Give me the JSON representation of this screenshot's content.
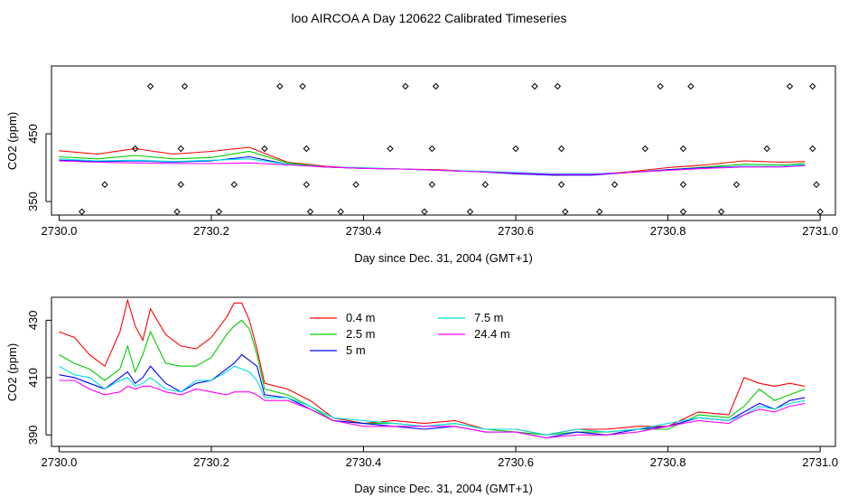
{
  "title": "loo AIRCOA A  Day 120622  Calibrated Timeseries",
  "colors": {
    "0.4 m": "#ff0000",
    "2.5 m": "#00cc00",
    "5 m": "#0000ff",
    "7.5 m": "#00e0e0",
    "24.4 m": "#ff00ff",
    "markers": "#000000"
  },
  "chart_data": [
    {
      "type": "line",
      "xlabel": "Day since Dec. 31, 2004 (GMT+1)",
      "ylabel": "CO2 (ppm)",
      "xlim": [
        2729.99,
        2731.02
      ],
      "ylim": [
        330,
        550
      ],
      "xticks": [
        "2730.0",
        "2730.2",
        "2730.4",
        "2730.6",
        "2730.8",
        "2731.0"
      ],
      "yticks": [
        "350",
        "450"
      ],
      "x": [
        2730.0,
        2730.05,
        2730.1,
        2730.15,
        2730.2,
        2730.25,
        2730.3,
        2730.35,
        2730.4,
        2730.45,
        2730.5,
        2730.55,
        2730.6,
        2730.65,
        2730.7,
        2730.75,
        2730.8,
        2730.85,
        2730.9,
        2730.95,
        2730.98
      ],
      "series": [
        {
          "name": "0.4 m",
          "values": [
            425,
            420,
            428,
            420,
            424,
            430,
            408,
            402,
            399,
            398,
            397,
            394,
            392,
            389,
            390,
            394,
            400,
            404,
            410,
            408,
            409
          ]
        },
        {
          "name": "2.5 m",
          "values": [
            416,
            413,
            418,
            413,
            415,
            424,
            407,
            401,
            399,
            398,
            396,
            394,
            391,
            389,
            390,
            393,
            397,
            401,
            405,
            404,
            406
          ]
        },
        {
          "name": "5 m",
          "values": [
            411,
            409,
            410,
            408,
            410,
            416,
            405,
            401,
            399,
            398,
            396,
            394,
            391,
            389,
            389,
            393,
            397,
            400,
            402,
            402,
            404
          ]
        },
        {
          "name": "7.5 m",
          "values": [
            413,
            410,
            411,
            409,
            411,
            413,
            405,
            401,
            400,
            398,
            396,
            395,
            393,
            391,
            391,
            393,
            396,
            399,
            402,
            402,
            404
          ]
        },
        {
          "name": "24.4 m",
          "values": [
            410,
            408,
            407,
            406,
            406,
            407,
            404,
            401,
            399,
            398,
            396,
            394,
            392,
            390,
            390,
            393,
            396,
            399,
            401,
            401,
            403
          ]
        }
      ],
      "markers": {
        "symbol": "diamond",
        "points": [
          [
            2730.03,
            335
          ],
          [
            2730.06,
            375
          ],
          [
            2730.1,
            428
          ],
          [
            2730.12,
            520
          ],
          [
            2730.155,
            335
          ],
          [
            2730.16,
            375
          ],
          [
            2730.16,
            428
          ],
          [
            2730.165,
            520
          ],
          [
            2730.21,
            335
          ],
          [
            2730.23,
            375
          ],
          [
            2730.27,
            428
          ],
          [
            2730.29,
            520
          ],
          [
            2730.32,
            520
          ],
          [
            2730.325,
            428
          ],
          [
            2730.325,
            375
          ],
          [
            2730.33,
            335
          ],
          [
            2730.37,
            335
          ],
          [
            2730.39,
            375
          ],
          [
            2730.435,
            428
          ],
          [
            2730.455,
            520
          ],
          [
            2730.48,
            335
          ],
          [
            2730.49,
            375
          ],
          [
            2730.49,
            428
          ],
          [
            2730.495,
            520
          ],
          [
            2730.54,
            335
          ],
          [
            2730.56,
            375
          ],
          [
            2730.6,
            428
          ],
          [
            2730.625,
            520
          ],
          [
            2730.655,
            520
          ],
          [
            2730.66,
            428
          ],
          [
            2730.66,
            375
          ],
          [
            2730.665,
            335
          ],
          [
            2730.71,
            335
          ],
          [
            2730.73,
            375
          ],
          [
            2730.77,
            428
          ],
          [
            2730.79,
            520
          ],
          [
            2730.82,
            428
          ],
          [
            2730.82,
            375
          ],
          [
            2730.82,
            335
          ],
          [
            2730.83,
            520
          ],
          [
            2730.87,
            335
          ],
          [
            2730.89,
            375
          ],
          [
            2730.93,
            428
          ],
          [
            2730.96,
            520
          ],
          [
            2730.99,
            520
          ],
          [
            2730.99,
            428
          ],
          [
            2730.995,
            375
          ],
          [
            2731.0,
            335
          ]
        ]
      }
    },
    {
      "type": "line",
      "xlabel": "Day since Dec. 31, 2004 (GMT+1)",
      "ylabel": "CO2 (ppm)",
      "xlim": [
        2729.99,
        2731.02
      ],
      "ylim": [
        386,
        438
      ],
      "xticks": [
        "2730.0",
        "2730.2",
        "2730.4",
        "2730.6",
        "2730.8",
        "2731.0"
      ],
      "yticks": [
        "390",
        "410",
        "430"
      ],
      "legend": {
        "placement": "top-center",
        "entries": [
          "0.4 m",
          "2.5 m",
          "5 m",
          "7.5 m",
          "24.4 m"
        ]
      },
      "x": [
        2730.0,
        2730.02,
        2730.04,
        2730.06,
        2730.08,
        2730.09,
        2730.1,
        2730.11,
        2730.12,
        2730.14,
        2730.16,
        2730.18,
        2730.2,
        2730.22,
        2730.23,
        2730.24,
        2730.25,
        2730.26,
        2730.27,
        2730.3,
        2730.33,
        2730.36,
        2730.4,
        2730.44,
        2730.48,
        2730.52,
        2730.56,
        2730.6,
        2730.64,
        2730.68,
        2730.72,
        2730.76,
        2730.8,
        2730.84,
        2730.88,
        2730.9,
        2730.92,
        2730.94,
        2730.96,
        2730.98
      ],
      "series": [
        {
          "name": "0.4 m",
          "values": [
            426,
            424,
            418,
            414,
            426,
            437,
            428,
            423,
            434,
            425,
            421,
            420,
            424,
            431,
            436,
            436,
            430,
            420,
            408,
            406,
            402,
            396,
            394,
            395,
            394,
            395,
            392,
            392,
            390,
            392,
            392,
            393,
            393,
            398,
            397,
            410,
            408,
            407,
            408,
            407
          ]
        },
        {
          "name": "2.5 m",
          "values": [
            418,
            415,
            413,
            409,
            413,
            421,
            412,
            418,
            426,
            415,
            414,
            414,
            417,
            425,
            428,
            430,
            427,
            418,
            406,
            404,
            400,
            395,
            394,
            394,
            393,
            394,
            392,
            391,
            390,
            391,
            391,
            392,
            392,
            397,
            396,
            400,
            406,
            402,
            404,
            406
          ]
        },
        {
          "name": "5 m",
          "values": [
            411,
            410,
            408,
            406,
            410,
            412,
            408,
            410,
            414,
            408,
            405,
            408,
            409,
            413,
            415,
            418,
            416,
            414,
            404,
            403,
            399,
            395,
            394,
            393,
            392,
            393,
            391,
            391,
            389,
            391,
            390,
            392,
            393,
            396,
            395,
            398,
            401,
            399,
            402,
            403
          ]
        },
        {
          "name": "7.5 m",
          "values": [
            414,
            411,
            410,
            406,
            409,
            410,
            407,
            408,
            410,
            406,
            405,
            409,
            409,
            412,
            414,
            413,
            412,
            409,
            403,
            403,
            400,
            396,
            395,
            394,
            393,
            394,
            392,
            392,
            390,
            392,
            391,
            392,
            394,
            396,
            395,
            397,
            400,
            399,
            401,
            402
          ]
        },
        {
          "name": "24.4 m",
          "values": [
            409,
            409,
            406,
            404,
            405,
            407,
            406,
            407,
            407,
            405,
            404,
            406,
            405,
            404,
            405,
            405,
            405,
            404,
            402,
            402,
            399,
            395,
            393,
            393,
            393,
            393,
            391,
            391,
            389,
            390,
            390,
            391,
            393,
            395,
            394,
            397,
            399,
            398,
            400,
            401
          ]
        }
      ]
    }
  ]
}
